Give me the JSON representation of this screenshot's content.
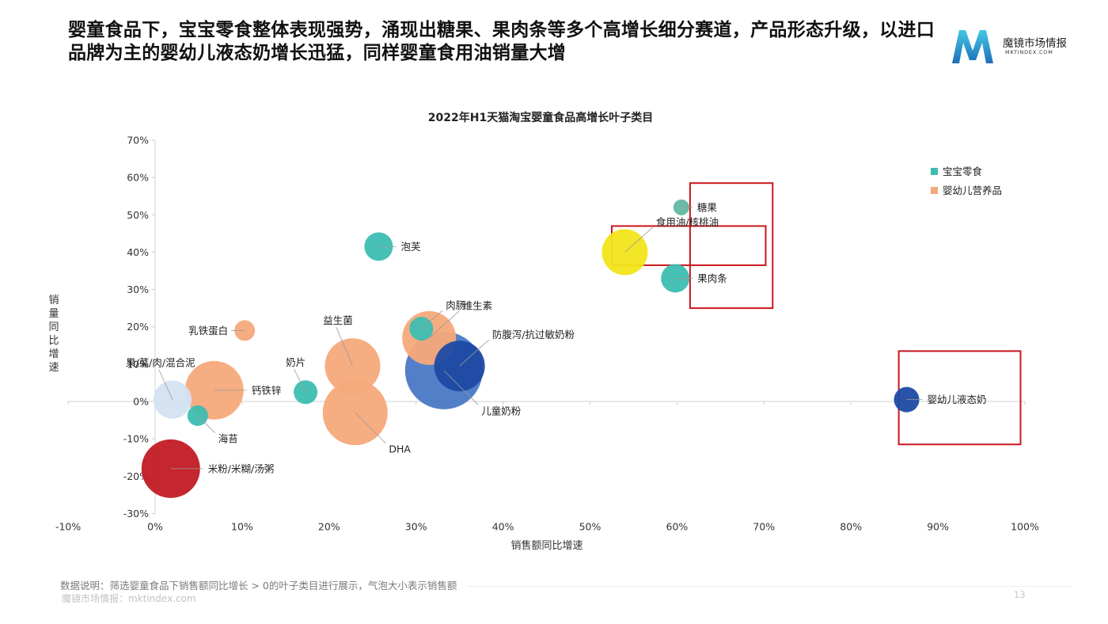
{
  "page": {
    "headline": "婴童食品下，宝宝零食整体表现强势，涌现出糖果、果肉条等多个高增长细分赛道，产品形态升级，以进口品牌为主的婴幼儿液态奶增长迅猛，同样婴童食用油销量大增",
    "logo_name": "魔镜市场情报",
    "logo_domain": "MKTINDEX.COM",
    "note": "数据说明：筛选婴童食品下销售额同比增长 > 0的叶子类目进行展示，气泡大小表示销售额",
    "source": "魔镜市场情报：mktindex.com",
    "page_number": "13"
  },
  "chart_data": {
    "type": "scatter",
    "title": "2022年H1天猫淘宝婴童食品高增长叶子类目",
    "xlabel": "销售额同比增速",
    "ylabel": "销量同比增速",
    "xlim": [
      -10,
      100
    ],
    "ylim": [
      -30,
      70
    ],
    "x_ticks": [
      -10,
      0,
      10,
      20,
      30,
      40,
      50,
      60,
      70,
      80,
      90,
      100
    ],
    "y_ticks": [
      -30,
      -20,
      -10,
      0,
      10,
      20,
      30,
      40,
      50,
      60,
      70
    ],
    "tick_format": "{v}%",
    "grid": false,
    "legend": [
      {
        "name": "宝宝零食",
        "color": "#3dbdb1"
      },
      {
        "name": "婴幼儿营养品",
        "color": "#f5a97a"
      }
    ],
    "legend_position": "top-right",
    "points": [
      {
        "label": "果/菜/肉/混合泥",
        "x": 2,
        "y": 0.5,
        "size": 24,
        "color": "#d4e1f1",
        "label_pos": "upper-left"
      },
      {
        "label": "米粉/米糊/汤粥",
        "x": 1.8,
        "y": -18,
        "size": 37,
        "color": "#c21b24",
        "label_pos": "right"
      },
      {
        "label": "钙铁锌",
        "x": 6.8,
        "y": 3,
        "size": 37,
        "color": "#f5a97a",
        "label_pos": "right"
      },
      {
        "label": "海苔",
        "x": 4.9,
        "y": -3.8,
        "size": 13,
        "color": "#3dbdb1",
        "label_pos": "lower-right"
      },
      {
        "label": "乳铁蛋白",
        "x": 10.3,
        "y": 19,
        "size": 13,
        "color": "#f5a97a",
        "label_pos": "left"
      },
      {
        "label": "奶片",
        "x": 17.3,
        "y": 2.5,
        "size": 15,
        "color": "#3dbdb1",
        "label_pos": "upper-left"
      },
      {
        "label": "益生菌",
        "x": 22.7,
        "y": 9.5,
        "size": 35,
        "color": "#f5a97a",
        "label_pos": "upper-left"
      },
      {
        "label": "DHA",
        "x": 23,
        "y": -3,
        "size": 41,
        "color": "#f5a97a",
        "label_pos": "lower-right"
      },
      {
        "label": "泡芙",
        "x": 25.7,
        "y": 41.5,
        "size": 18,
        "color": "#3dbdb1",
        "label_pos": "right"
      },
      {
        "label": "儿童奶粉",
        "x": 33.2,
        "y": 8.3,
        "size": 49,
        "color": "#4a78c6",
        "label_pos": "lower-right"
      },
      {
        "label": "防腹泻/抗过敏奶粉",
        "x": 35,
        "y": 9.5,
        "size": 32,
        "color": "#1d4aa3",
        "label_pos": "upper-right"
      },
      {
        "label": "维生素",
        "x": 31.5,
        "y": 17,
        "size": 34,
        "color": "#f5a97a",
        "label_pos": "upper-right"
      },
      {
        "label": "肉肠",
        "x": 30.6,
        "y": 19.5,
        "size": 15,
        "color": "#3dbdb1",
        "label_pos": "upper-right"
      },
      {
        "label": "食用油/核桃油",
        "x": 54,
        "y": 40,
        "size": 29,
        "color": "#f2e51a",
        "label_pos": "upper-right"
      },
      {
        "label": "糖果",
        "x": 60.5,
        "y": 52,
        "size": 10,
        "color": "#62b7a3",
        "label_pos": "right"
      },
      {
        "label": "果肉条",
        "x": 59.8,
        "y": 33,
        "size": 18,
        "color": "#3dbdb1",
        "label_pos": "right"
      },
      {
        "label": "婴幼儿液态奶",
        "x": 86.4,
        "y": 0.5,
        "size": 16,
        "color": "#1d4aa3",
        "label_pos": "right"
      }
    ],
    "highlight_color": "#c8161d",
    "highlights": [
      {
        "x0": 61.5,
        "x1": 71,
        "y0": 25,
        "y1": 58.5
      },
      {
        "x0": 52.5,
        "x1": 70.2,
        "y0": 36.5,
        "y1": 47
      },
      {
        "x0": 85.5,
        "x1": 99.5,
        "y0": -11.5,
        "y1": 13.5
      }
    ]
  }
}
